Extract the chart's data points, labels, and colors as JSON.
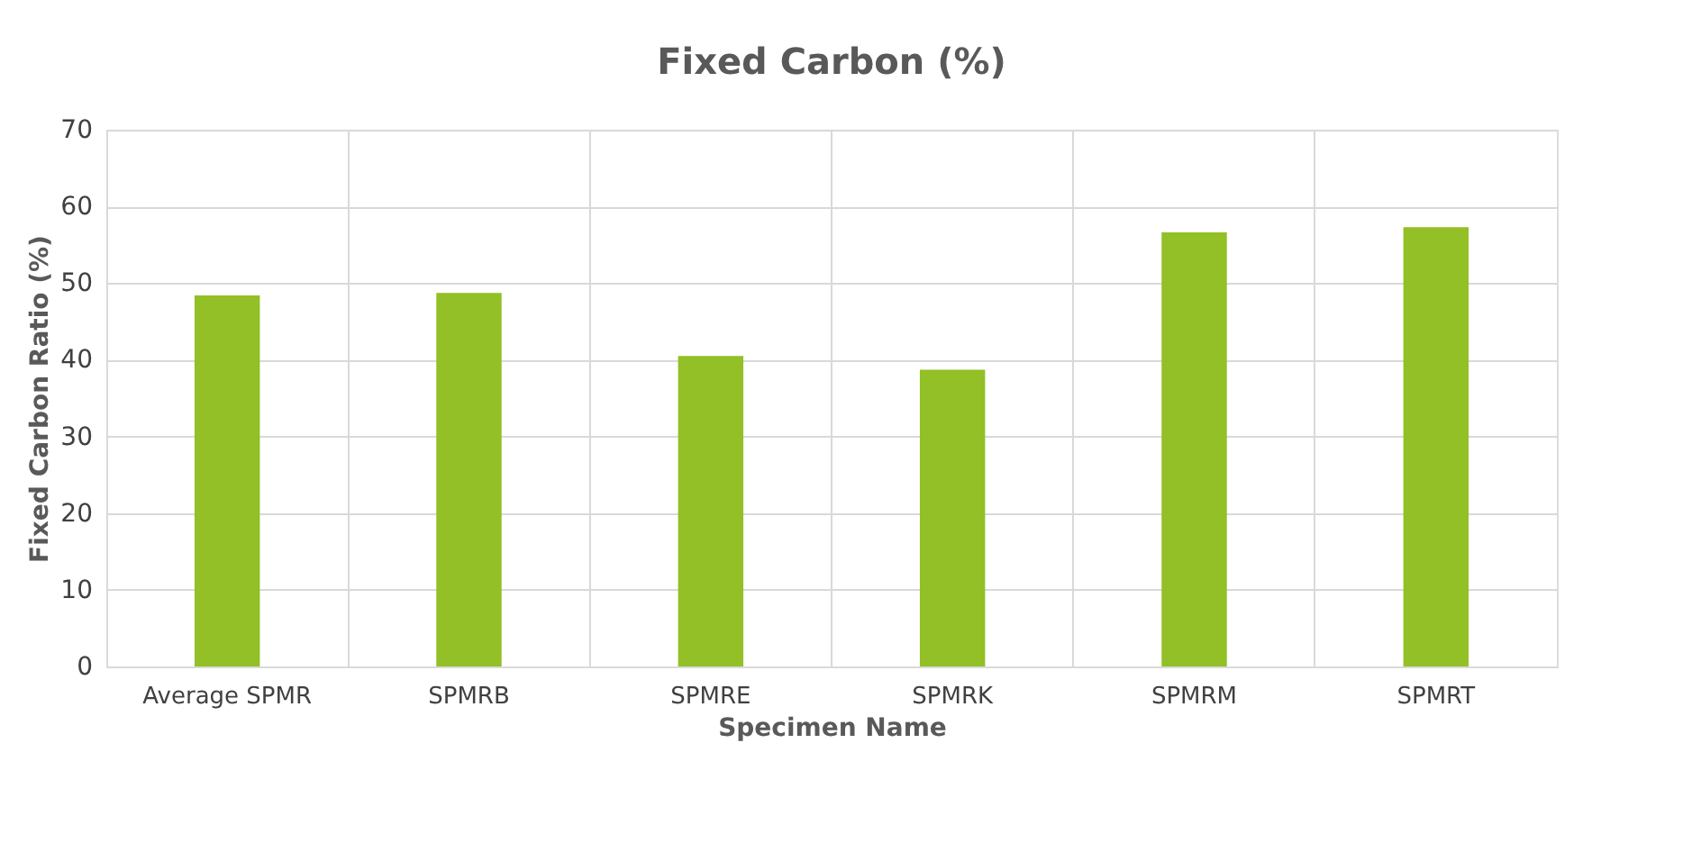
{
  "chart_data": {
    "type": "bar",
    "title": "Fixed Carbon (%)",
    "xlabel": "Specimen Name",
    "ylabel": "Fixed Carbon Ratio (%)",
    "categories": [
      "Average SPMR",
      "SPMRB",
      "SPMRE",
      "SPMRK",
      "SPMRM",
      "SPMRT"
    ],
    "values": [
      48.4,
      48.7,
      40.5,
      38.7,
      56.6,
      57.3
    ],
    "color": "#92c026",
    "ylim": [
      0,
      70
    ],
    "yticks": [
      0,
      10,
      20,
      30,
      40,
      50,
      60,
      70
    ],
    "grid": true
  }
}
